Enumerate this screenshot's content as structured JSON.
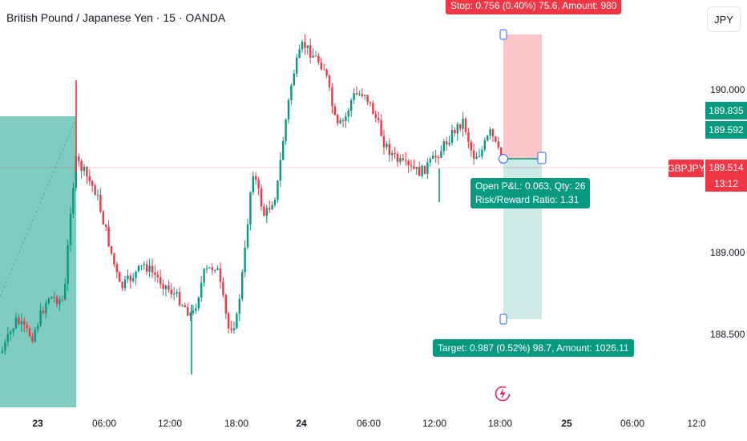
{
  "header": {
    "title": "British Pound / Japanese Yen · 15 · OANDA",
    "currency_button": "JPY"
  },
  "price_axis": {
    "labels": [
      {
        "value": 190.0,
        "text": "190.000"
      },
      {
        "value": 189.0,
        "text": "189.000"
      },
      {
        "value": 188.5,
        "text": "188.500"
      }
    ],
    "tags": [
      {
        "name": "stop-price-tag",
        "text": "189.835",
        "value": 189.835,
        "color": "#089981"
      },
      {
        "name": "entry-price-tag",
        "text": "189.592",
        "value": 189.592,
        "color": "#089981"
      }
    ],
    "symbol_badge": "GBPJPY",
    "last_price": "189.514",
    "countdown": "13:12"
  },
  "time_axis": {
    "labels": [
      {
        "text": "23",
        "bold": true
      },
      {
        "text": "06:00",
        "bold": false
      },
      {
        "text": "12:00",
        "bold": false
      },
      {
        "text": "18:00",
        "bold": false
      },
      {
        "text": "24",
        "bold": true
      },
      {
        "text": "06:00",
        "bold": false
      },
      {
        "text": "12:00",
        "bold": false
      },
      {
        "text": "18:00",
        "bold": false
      },
      {
        "text": "25",
        "bold": true
      },
      {
        "text": "06:00",
        "bold": false
      },
      {
        "text": "12:0",
        "bold": false
      }
    ]
  },
  "position_tool": {
    "stop_label": "Stop: 0.756 (0.40%) 75.6, Amount: 980",
    "target_label": "Target: 0.987 (0.52%) 98.7, Amount: 1026.11",
    "pnl_line1": "Open P&L: 0.063, Qty: 26",
    "pnl_line2": "Risk/Reward Ratio: 1.31"
  },
  "colors": {
    "up": "#089981",
    "down": "#f23645",
    "stop_fill": "#fcc5c8",
    "target_fill": "#cdeae6"
  },
  "icons": {
    "replay": "lightning-bolt-icon"
  }
}
